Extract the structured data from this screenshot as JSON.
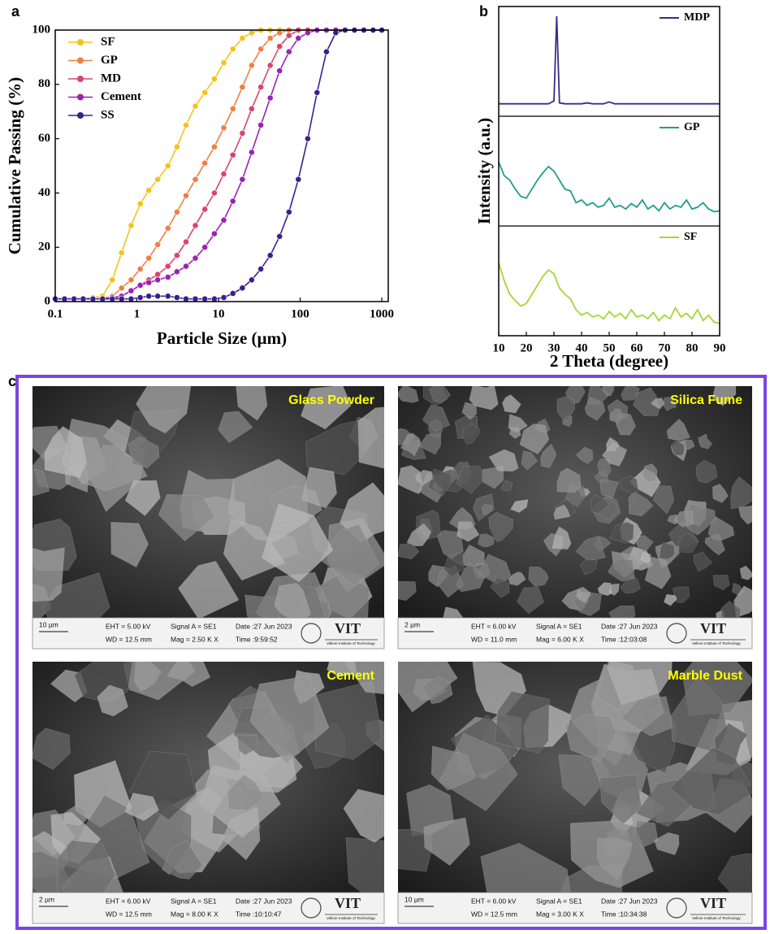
{
  "panel_labels": [
    "a",
    "b",
    "c"
  ],
  "chart_data": [
    {
      "type": "line",
      "x_label": "Particle Size (µm)",
      "y_label": "Cumulative Passing (%)",
      "xlog": true,
      "legend": "upper left",
      "x": [
        0.1,
        0.13,
        0.17,
        0.22,
        0.29,
        0.38,
        0.5,
        0.65,
        0.85,
        1.1,
        1.4,
        1.8,
        2.4,
        3.1,
        4,
        5.2,
        6.8,
        8.9,
        11.6,
        15,
        19.6,
        25.5,
        33,
        43,
        56,
        73,
        95,
        124,
        161,
        210,
        273,
        355,
        463,
        602,
        783,
        1000
      ],
      "xlim": [
        0.1,
        1200
      ],
      "xticks": [
        0.1,
        1,
        10,
        100,
        1000
      ],
      "ylim": [
        0,
        100
      ],
      "yticks": [
        0,
        20,
        40,
        60,
        80,
        100
      ],
      "series": [
        {
          "name": "SF",
          "color": "#f5c21b",
          "values": [
            1,
            1,
            1,
            1,
            1.5,
            2,
            8,
            18,
            28,
            36,
            41,
            45,
            50,
            57,
            65,
            72,
            77,
            82,
            88,
            93,
            97,
            99,
            100,
            100,
            100,
            100,
            100,
            100,
            100,
            100,
            100,
            100,
            100,
            100,
            100,
            100
          ]
        },
        {
          "name": "GP",
          "color": "#ef7f45",
          "values": [
            1,
            1,
            1,
            1,
            1,
            1,
            2,
            5,
            8,
            12,
            16,
            21,
            27,
            33,
            39,
            45,
            51,
            57,
            64,
            71,
            79,
            87,
            93,
            97,
            99,
            100,
            100,
            100,
            100,
            100,
            100,
            100,
            100,
            100,
            100,
            100
          ]
        },
        {
          "name": "MD",
          "color": "#d8466e",
          "values": [
            1,
            1,
            1,
            1,
            1,
            1,
            1,
            2,
            4,
            6,
            8,
            10,
            13,
            17,
            22,
            28,
            34,
            40,
            47,
            54,
            62,
            71,
            79,
            87,
            94,
            98,
            100,
            100,
            100,
            100,
            100,
            100,
            100,
            100,
            100,
            100
          ]
        },
        {
          "name": "Cement",
          "color": "#9a22b4",
          "values": [
            1,
            1,
            1,
            1,
            1,
            1,
            1.5,
            2,
            4,
            6,
            7,
            8,
            9,
            11,
            13,
            16,
            20,
            25,
            30,
            37,
            45,
            55,
            65,
            75,
            85,
            92,
            97,
            99,
            100,
            100,
            100,
            100,
            100,
            100,
            100,
            100
          ]
        },
        {
          "name": "SS",
          "color": "#3b1f90",
          "values": [
            1,
            1,
            1,
            1,
            1,
            1,
            1,
            1,
            1,
            1.5,
            2,
            2,
            2,
            1.5,
            1,
            1,
            1,
            1,
            1.5,
            3,
            5,
            8,
            12,
            17,
            24,
            33,
            45,
            60,
            77,
            92,
            99,
            100,
            100,
            100,
            100,
            100
          ]
        }
      ]
    },
    {
      "type": "xrd",
      "x_label": "2 Theta (degree)",
      "y_label": "Intensity (a.u.)",
      "x": [
        10,
        12,
        14,
        16,
        18,
        20,
        22,
        24,
        26,
        28,
        30,
        31,
        32,
        34,
        36,
        38,
        40,
        42,
        44,
        46,
        48,
        50,
        52,
        54,
        56,
        58,
        60,
        62,
        64,
        66,
        68,
        70,
        72,
        74,
        76,
        78,
        80,
        82,
        84,
        86,
        88,
        90
      ],
      "xlim": [
        10,
        90
      ],
      "xticks": [
        10,
        20,
        30,
        40,
        50,
        60,
        70,
        80,
        90
      ],
      "ylim": [
        0,
        100
      ],
      "series": [
        {
          "name": "MDP",
          "color": "#3a2a8c",
          "values": [
            3,
            3,
            3,
            3,
            3,
            3,
            3,
            3,
            3,
            3,
            6,
            100,
            4,
            3,
            3,
            3,
            3,
            4,
            3,
            3,
            3,
            5,
            3,
            3,
            3,
            3,
            3,
            3,
            3,
            3,
            3,
            3,
            3,
            3,
            3,
            3,
            3,
            3,
            3,
            3,
            3,
            3
          ]
        },
        {
          "name": "GP",
          "color": "#1f9e89",
          "values": [
            60,
            45,
            40,
            30,
            22,
            20,
            30,
            40,
            48,
            55,
            50,
            45,
            40,
            30,
            28,
            15,
            18,
            12,
            15,
            10,
            12,
            20,
            10,
            12,
            8,
            14,
            10,
            18,
            8,
            12,
            6,
            15,
            8,
            12,
            10,
            18,
            8,
            10,
            15,
            8,
            5,
            6
          ]
        },
        {
          "name": "SF",
          "color": "#a6d633",
          "values": [
            70,
            50,
            35,
            28,
            22,
            25,
            35,
            45,
            55,
            62,
            58,
            50,
            42,
            35,
            30,
            18,
            12,
            15,
            10,
            12,
            8,
            16,
            10,
            14,
            8,
            18,
            10,
            12,
            8,
            15,
            6,
            12,
            8,
            20,
            10,
            14,
            8,
            18,
            6,
            12,
            4,
            3
          ]
        }
      ]
    }
  ],
  "sem_images": [
    {
      "title": "Glass Powder",
      "scale_bar": "10 µm",
      "eht": "EHT = 5.00 kV",
      "wd": "WD = 12.5 mm",
      "signal": "Signal A = SE1",
      "mag": "Mag =   2.50 K X",
      "date": "Date :27 Jun 2023",
      "time": "Time :9:59:52",
      "logo": "VIT",
      "institute": "Vellore Institute of Technology"
    },
    {
      "title": "Silica Fume",
      "scale_bar": "2 µm",
      "eht": "EHT = 6.00 kV",
      "wd": "WD = 11.0 mm",
      "signal": "Signal A = SE1",
      "mag": "Mag =   6.00 K X",
      "date": "Date :27 Jun 2023",
      "time": "Time :12:03:08",
      "logo": "VIT",
      "institute": "Vellore Institute of Technology"
    },
    {
      "title": "Cement",
      "scale_bar": "2 µm",
      "eht": "EHT = 6.00 kV",
      "wd": "WD = 12.5 mm",
      "signal": "Signal A = SE1",
      "mag": "Mag =   8.00 K X",
      "date": "Date :27 Jun 2023",
      "time": "Time :10:10:47",
      "logo": "VIT",
      "institute": "Vellore Institute of Technology"
    },
    {
      "title": "Marble Dust",
      "scale_bar": "10 µm",
      "eht": "EHT = 6.00 kV",
      "wd": "WD = 12.5 mm",
      "signal": "Signal A = SE1",
      "mag": "Mag =   3.00 K X",
      "date": "Date :27 Jun 2023",
      "time": "Time :10:34:38",
      "logo": "VIT",
      "institute": "Vellore Institute of Technology"
    }
  ]
}
